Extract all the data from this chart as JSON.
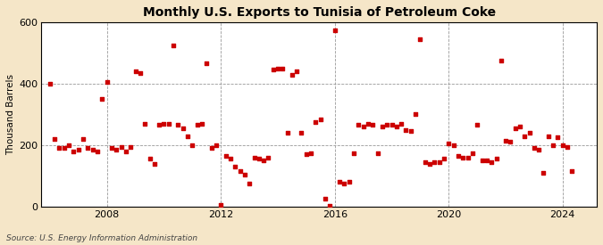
{
  "title": "Monthly U.S. Exports to Tunisia of Petroleum Coke",
  "ylabel": "Thousand Barrels",
  "source": "Source: U.S. Energy Information Administration",
  "background_color": "#f5e6c8",
  "plot_bg_color": "#ffffff",
  "marker_color": "#cc0000",
  "marker_size": 7,
  "ylim": [
    0,
    600
  ],
  "yticks": [
    0,
    200,
    400,
    600
  ],
  "xticks": [
    2008,
    2012,
    2016,
    2020,
    2024
  ],
  "xlim": [
    2005.7,
    2025.2
  ],
  "data": [
    [
      2006.0,
      400
    ],
    [
      2006.17,
      220
    ],
    [
      2006.33,
      190
    ],
    [
      2006.5,
      190
    ],
    [
      2006.67,
      200
    ],
    [
      2006.83,
      180
    ],
    [
      2007.0,
      185
    ],
    [
      2007.17,
      220
    ],
    [
      2007.33,
      190
    ],
    [
      2007.5,
      185
    ],
    [
      2007.67,
      180
    ],
    [
      2007.83,
      350
    ],
    [
      2008.0,
      405
    ],
    [
      2008.17,
      190
    ],
    [
      2008.33,
      185
    ],
    [
      2008.5,
      195
    ],
    [
      2008.67,
      180
    ],
    [
      2008.83,
      195
    ],
    [
      2009.0,
      440
    ],
    [
      2009.17,
      435
    ],
    [
      2009.33,
      270
    ],
    [
      2009.5,
      155
    ],
    [
      2009.67,
      140
    ],
    [
      2009.83,
      265
    ],
    [
      2010.0,
      270
    ],
    [
      2010.17,
      270
    ],
    [
      2010.33,
      525
    ],
    [
      2010.5,
      265
    ],
    [
      2010.67,
      255
    ],
    [
      2010.83,
      230
    ],
    [
      2011.0,
      200
    ],
    [
      2011.17,
      265
    ],
    [
      2011.33,
      270
    ],
    [
      2011.5,
      465
    ],
    [
      2011.67,
      190
    ],
    [
      2011.83,
      200
    ],
    [
      2012.0,
      5
    ],
    [
      2012.17,
      165
    ],
    [
      2012.33,
      155
    ],
    [
      2012.5,
      130
    ],
    [
      2012.67,
      115
    ],
    [
      2012.83,
      105
    ],
    [
      2013.0,
      75
    ],
    [
      2013.17,
      160
    ],
    [
      2013.33,
      155
    ],
    [
      2013.5,
      150
    ],
    [
      2013.67,
      160
    ],
    [
      2013.83,
      445
    ],
    [
      2014.0,
      450
    ],
    [
      2014.17,
      450
    ],
    [
      2014.33,
      240
    ],
    [
      2014.5,
      430
    ],
    [
      2014.67,
      440
    ],
    [
      2014.83,
      240
    ],
    [
      2015.0,
      170
    ],
    [
      2015.17,
      175
    ],
    [
      2015.33,
      275
    ],
    [
      2015.5,
      285
    ],
    [
      2015.67,
      25
    ],
    [
      2015.83,
      3
    ],
    [
      2016.0,
      575
    ],
    [
      2016.17,
      80
    ],
    [
      2016.33,
      75
    ],
    [
      2016.5,
      80
    ],
    [
      2016.67,
      175
    ],
    [
      2016.83,
      265
    ],
    [
      2017.0,
      260
    ],
    [
      2017.17,
      270
    ],
    [
      2017.33,
      265
    ],
    [
      2017.5,
      175
    ],
    [
      2017.67,
      260
    ],
    [
      2017.83,
      265
    ],
    [
      2018.0,
      265
    ],
    [
      2018.17,
      260
    ],
    [
      2018.33,
      270
    ],
    [
      2018.5,
      250
    ],
    [
      2018.67,
      245
    ],
    [
      2018.83,
      300
    ],
    [
      2019.0,
      545
    ],
    [
      2019.17,
      145
    ],
    [
      2019.33,
      140
    ],
    [
      2019.5,
      145
    ],
    [
      2019.67,
      145
    ],
    [
      2019.83,
      155
    ],
    [
      2020.0,
      205
    ],
    [
      2020.17,
      200
    ],
    [
      2020.33,
      165
    ],
    [
      2020.5,
      160
    ],
    [
      2020.67,
      160
    ],
    [
      2020.83,
      175
    ],
    [
      2021.0,
      265
    ],
    [
      2021.17,
      150
    ],
    [
      2021.33,
      150
    ],
    [
      2021.5,
      145
    ],
    [
      2021.67,
      155
    ],
    [
      2021.83,
      475
    ],
    [
      2022.0,
      215
    ],
    [
      2022.17,
      210
    ],
    [
      2022.33,
      255
    ],
    [
      2022.5,
      260
    ],
    [
      2022.67,
      230
    ],
    [
      2022.83,
      240
    ],
    [
      2023.0,
      190
    ],
    [
      2023.17,
      185
    ],
    [
      2023.33,
      110
    ],
    [
      2023.5,
      230
    ],
    [
      2023.67,
      200
    ],
    [
      2023.83,
      225
    ],
    [
      2024.0,
      200
    ],
    [
      2024.17,
      195
    ],
    [
      2024.33,
      115
    ]
  ]
}
